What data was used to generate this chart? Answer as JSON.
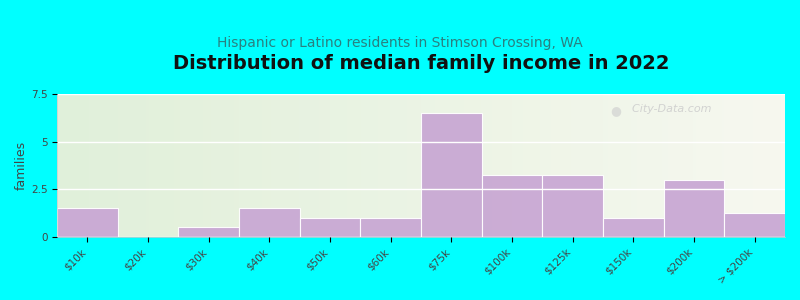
{
  "title": "Distribution of median family income in 2022",
  "subtitle": "Hispanic or Latino residents in Stimson Crossing, WA",
  "ylabel": "families",
  "background_color": "#00FFFF",
  "bar_color": "#c9a8d4",
  "bar_edge_color": "#c9a8d4",
  "categories": [
    "$10k",
    "$20k",
    "$30k",
    "$40k",
    "$50k",
    "$60k",
    "$75k",
    "$100k",
    "$125k",
    "$150k",
    "$200k",
    "> $200k"
  ],
  "values": [
    1.5,
    0.0,
    0.5,
    1.5,
    1.0,
    1.0,
    6.5,
    3.25,
    3.25,
    1.0,
    3.0,
    1.25
  ],
  "ylim": [
    0,
    7.5
  ],
  "yticks": [
    0,
    2.5,
    5,
    7.5
  ],
  "title_fontsize": 14,
  "subtitle_fontsize": 10,
  "ylabel_fontsize": 9,
  "tick_fontsize": 7.5,
  "watermark_text": "  City-Data.com",
  "subtitle_color": "#2a8080",
  "title_color": "#111111"
}
